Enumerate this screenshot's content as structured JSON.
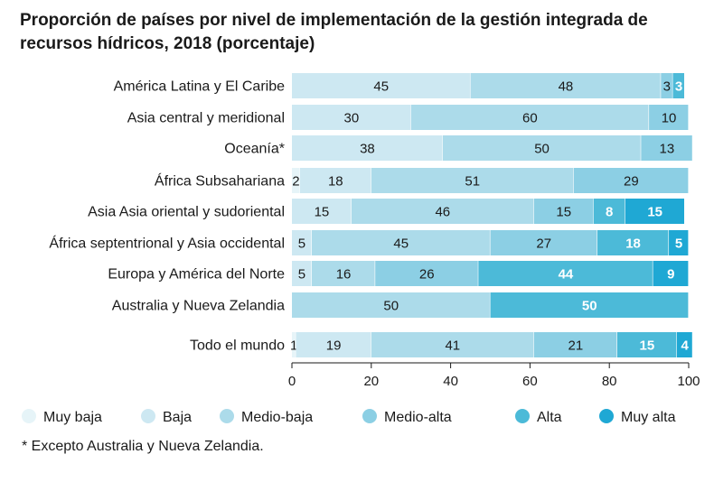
{
  "chart_data": {
    "type": "bar",
    "orientation": "horizontal",
    "stacked": true,
    "title": "Proporción de países por nivel de implementación de la gestión integrada de recursos hídricos, 2018 (porcentaje)",
    "xlim": [
      0,
      100
    ],
    "xticks": [
      0,
      20,
      40,
      60,
      80,
      100
    ],
    "legend_position": "bottom",
    "categories": [
      "América Latina y El Caribe",
      "Asia central y meridional",
      "Oceanía*",
      "África Subsahariana",
      "Asia Asia oriental y sudoriental",
      "África septentrional y Asia occidental",
      "Europa y América del Norte",
      "Australia y Nueva Zelandia",
      "Todo el mundo"
    ],
    "series": [
      {
        "name": "Muy baja",
        "color": "#e6f4f8",
        "values": [
          0,
          0,
          0,
          2,
          0,
          0,
          0,
          0,
          1
        ]
      },
      {
        "name": "Baja",
        "color": "#cde8f2",
        "values": [
          45,
          30,
          38,
          18,
          15,
          5,
          5,
          0,
          19
        ]
      },
      {
        "name": "Medio-baja",
        "color": "#acdbea",
        "values": [
          48,
          60,
          50,
          51,
          46,
          45,
          16,
          50,
          41
        ]
      },
      {
        "name": "Medio-alta",
        "color": "#8ccfe4",
        "values": [
          3,
          10,
          13,
          29,
          15,
          27,
          26,
          0,
          21
        ]
      },
      {
        "name": "Alta",
        "color": "#4cbad8",
        "values": [
          3,
          0,
          0,
          0,
          8,
          18,
          44,
          50,
          15
        ]
      },
      {
        "name": "Muy alta",
        "color": "#1fa8d4",
        "values": [
          0,
          0,
          0,
          0,
          15,
          5,
          9,
          0,
          4
        ]
      }
    ],
    "footnote": "* Excepto Australia y Nueva Zelandia."
  }
}
